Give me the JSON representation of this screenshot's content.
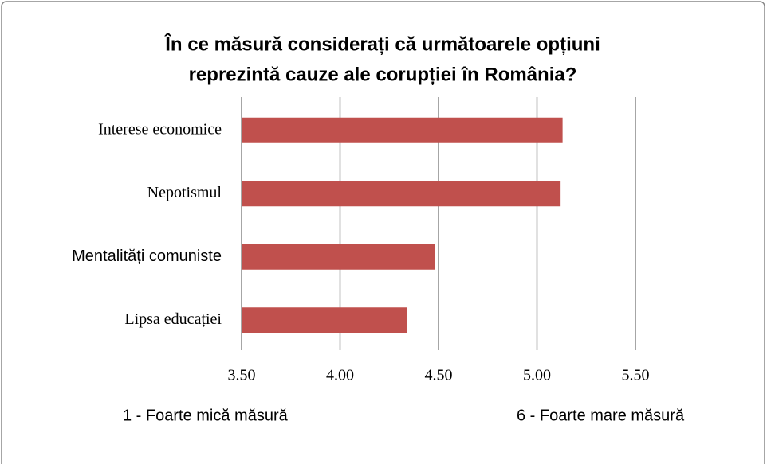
{
  "chart_data": {
    "type": "barh",
    "title": [
      "În ce măsură considerați că următoarele opțiuni",
      "reprezintă cauze ale corupției în România?"
    ],
    "categories": [
      "Interese economice",
      "Nepotismul",
      "Mentalități comuniste",
      "Lipsa educației"
    ],
    "values": [
      5.13,
      5.12,
      4.48,
      4.34
    ],
    "color": "#c0504d",
    "xlim": [
      3.5,
      5.5
    ],
    "xticks": [
      {
        "value": 3.5,
        "label": "3.50"
      },
      {
        "value": 4,
        "label": "4.00"
      },
      {
        "value": 4.5,
        "label": "4.50"
      },
      {
        "value": 5,
        "label": "5.00"
      },
      {
        "value": 5.5,
        "label": "5.50"
      }
    ],
    "grid": true,
    "annotations": [
      "1 - Foarte mică măsură",
      "6 - Foarte mare măsură"
    ]
  }
}
